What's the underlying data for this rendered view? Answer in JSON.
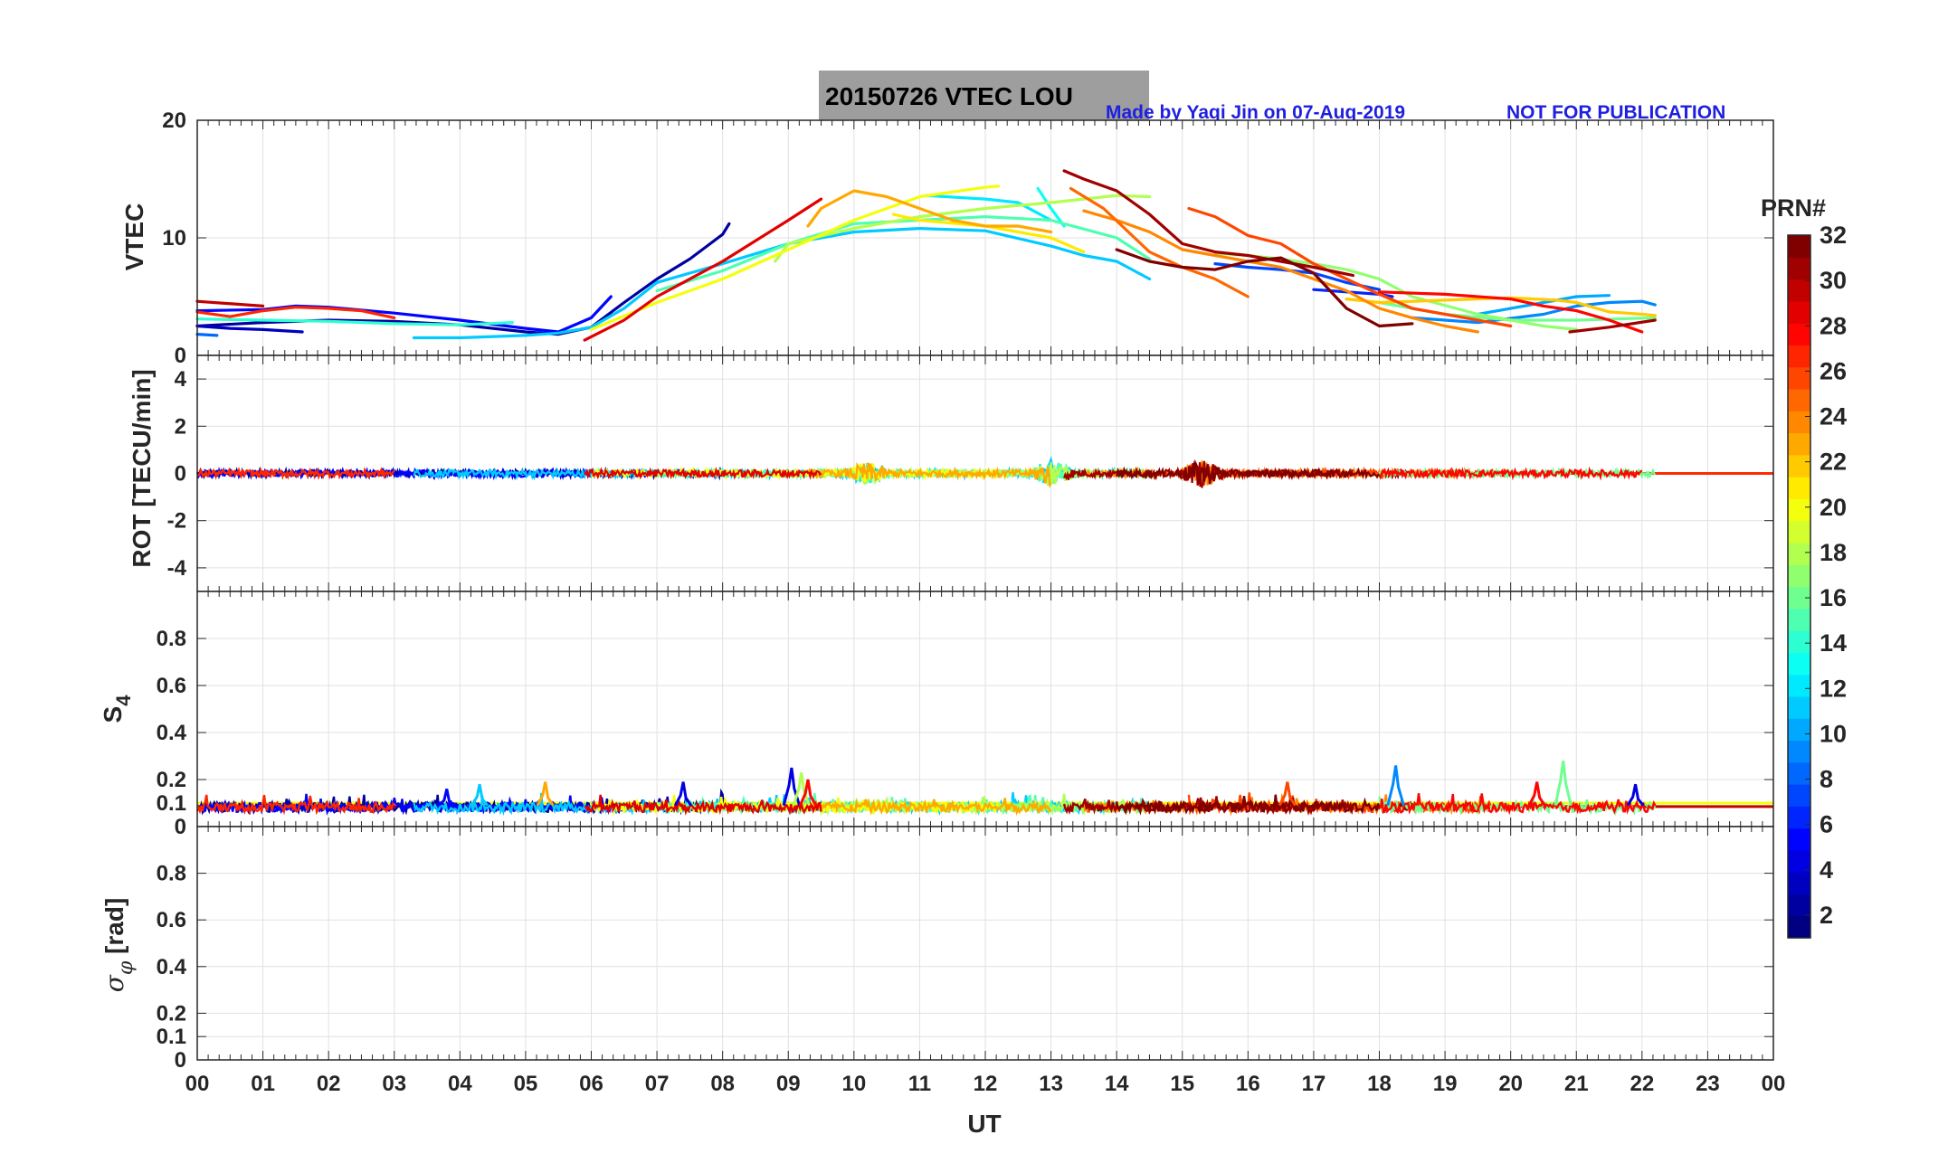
{
  "figure": {
    "title": "20150726    VTEC  LOU",
    "credit": "Made by Yaqi Jin on 07-Aug-2019",
    "notice": "NOT FOR PUBLICATION",
    "title_box_color": "#9e9e9e",
    "credit_color": "#1f1fe0"
  },
  "chart_data": [
    {
      "type": "line",
      "panel": "vtec",
      "ylabel": "VTEC",
      "ylim": [
        0,
        20
      ],
      "yticks": [
        0,
        10,
        20
      ],
      "xlim": [
        0,
        24
      ],
      "grid": true,
      "series": [
        {
          "prn": 2,
          "x": [
            0.0,
            1.0,
            2.0,
            3.0,
            4.0,
            5.0,
            5.5,
            6.0,
            6.5,
            7.0,
            7.5,
            8.0,
            8.1
          ],
          "y": [
            2.5,
            2.8,
            3.0,
            2.9,
            2.6,
            2.0,
            1.8,
            2.4,
            4.5,
            6.5,
            8.2,
            10.3,
            11.2
          ]
        },
        {
          "prn": 3,
          "x": [
            0.0,
            0.5,
            1.0,
            1.6
          ],
          "y": [
            2.5,
            2.3,
            2.2,
            2.0
          ]
        },
        {
          "prn": 5,
          "x": [
            0.0,
            1.0,
            1.5,
            2.0,
            3.0,
            4.0,
            5.0,
            5.5,
            6.0,
            6.3
          ],
          "y": [
            3.8,
            3.9,
            4.2,
            4.1,
            3.6,
            3.0,
            2.3,
            2.0,
            3.2,
            5.0
          ]
        },
        {
          "prn": 6,
          "x": [
            17.0,
            17.5,
            18.0,
            18.2
          ],
          "y": [
            5.6,
            5.4,
            5.2,
            5.0
          ]
        },
        {
          "prn": 7,
          "x": [
            15.5,
            16.0,
            16.5,
            17.0,
            17.5,
            18.0
          ],
          "y": [
            7.8,
            7.5,
            7.3,
            7.0,
            6.2,
            5.6
          ]
        },
        {
          "prn": 8,
          "x": [
            0.0,
            0.3
          ],
          "y": [
            1.8,
            1.7
          ]
        },
        {
          "prn": 9,
          "x": [
            18.5,
            19.5,
            20.5,
            21.0,
            21.5,
            22.0,
            22.2
          ],
          "y": [
            3.2,
            2.8,
            3.5,
            4.2,
            4.5,
            4.6,
            4.3
          ]
        },
        {
          "prn": 10,
          "x": [
            19.5,
            20.5,
            21.0,
            21.5
          ],
          "y": [
            3.5,
            4.5,
            5.0,
            5.1
          ]
        },
        {
          "prn": 11,
          "x": [
            3.3,
            4.0,
            5.0,
            5.5,
            6.0,
            6.5,
            7.0,
            8.0,
            9.0,
            10.0,
            11.0,
            12.0,
            13.0,
            13.5,
            14.0,
            14.5
          ],
          "y": [
            1.5,
            1.5,
            1.7,
            1.9,
            2.4,
            4.0,
            6.2,
            7.8,
            9.5,
            10.5,
            10.8,
            10.6,
            9.3,
            8.5,
            8.0,
            6.5
          ]
        },
        {
          "prn": 12,
          "x": [
            11.1,
            12.0,
            12.5,
            13.0
          ],
          "y": [
            13.6,
            13.3,
            13.0,
            11.5
          ]
        },
        {
          "prn": 13,
          "x": [
            12.8,
            13.0,
            13.2
          ],
          "y": [
            14.2,
            12.5,
            11.0
          ]
        },
        {
          "prn": 14,
          "x": [
            0.0,
            1.0,
            2.0,
            3.0,
            4.0,
            4.8
          ],
          "y": [
            3.1,
            3.0,
            2.9,
            2.7,
            2.6,
            2.8
          ]
        },
        {
          "prn": 15,
          "x": [
            7.0,
            8.0,
            9.0,
            10.0,
            11.0,
            12.0,
            13.0,
            14.0,
            14.5
          ],
          "y": [
            5.5,
            7.2,
            9.5,
            11.2,
            11.5,
            11.8,
            11.5,
            10.0,
            8.2
          ]
        },
        {
          "prn": 16,
          "x": [
            18.0,
            19.0,
            20.0,
            21.0,
            22.2
          ],
          "y": [
            4.5,
            3.5,
            3.0,
            3.0,
            3.2
          ]
        },
        {
          "prn": 17,
          "x": [
            15.5,
            16.0,
            16.5,
            17.0,
            17.5,
            18.0,
            18.5,
            19.5,
            20.0,
            20.5,
            21.0
          ],
          "y": [
            8.7,
            8.5,
            8.2,
            7.8,
            7.3,
            6.5,
            5.0,
            3.5,
            3.0,
            2.5,
            2.2
          ]
        },
        {
          "prn": 18,
          "x": [
            8.8,
            9.0,
            10.0,
            11.0,
            12.0,
            13.0,
            14.0,
            14.5
          ],
          "y": [
            8.0,
            9.5,
            10.8,
            11.8,
            12.5,
            13.0,
            13.6,
            13.5
          ]
        },
        {
          "prn": 20,
          "x": [
            6.0,
            7.0,
            8.0,
            9.0,
            10.0,
            11.0,
            12.0,
            12.2
          ],
          "y": [
            2.2,
            4.5,
            6.5,
            9.0,
            11.5,
            13.5,
            14.3,
            14.4
          ]
        },
        {
          "prn": 21,
          "x": [
            10.6,
            11.0,
            12.0,
            13.0,
            13.5
          ],
          "y": [
            12.0,
            11.5,
            11.0,
            10.0,
            8.8
          ]
        },
        {
          "prn": 22,
          "x": [
            17.5,
            18.0,
            19.0,
            20.0,
            20.7,
            21.0,
            21.5,
            22.0,
            22.2
          ],
          "y": [
            4.8,
            4.5,
            4.7,
            4.9,
            4.7,
            4.5,
            3.7,
            3.5,
            3.4
          ]
        },
        {
          "prn": 23,
          "x": [
            9.3,
            9.5,
            10.0,
            10.5,
            11.0,
            11.5,
            12.0,
            12.5,
            13.0
          ],
          "y": [
            11.0,
            12.5,
            14.0,
            13.5,
            12.5,
            11.5,
            11.0,
            11.0,
            10.5
          ]
        },
        {
          "prn": 24,
          "x": [
            13.5,
            14.0,
            14.5,
            15.0,
            15.5,
            16.0,
            16.5,
            17.0,
            17.5,
            18.0,
            18.5,
            19.0,
            19.5
          ],
          "y": [
            12.3,
            11.5,
            10.5,
            9.0,
            8.5,
            8.0,
            7.5,
            6.5,
            5.5,
            4.0,
            3.2,
            2.5,
            2.0
          ]
        },
        {
          "prn": 25,
          "x": [
            13.3,
            13.8,
            14.5,
            15.0,
            15.5,
            16.0
          ],
          "y": [
            14.2,
            12.5,
            8.8,
            7.5,
            6.5,
            5.0
          ]
        },
        {
          "prn": 26,
          "x": [
            15.1,
            15.5,
            16.0,
            16.5,
            17.0,
            17.5,
            18.0,
            18.5,
            19.0,
            19.5,
            20.0
          ],
          "y": [
            12.5,
            11.8,
            10.2,
            9.5,
            7.8,
            6.5,
            5.2,
            4.0,
            3.5,
            3.0,
            2.5
          ]
        },
        {
          "prn": 27,
          "x": [
            0.0,
            0.5,
            1.0,
            1.5,
            2.0,
            2.5,
            3.0
          ],
          "y": [
            3.7,
            3.3,
            3.8,
            4.1,
            4.0,
            3.8,
            3.2
          ]
        },
        {
          "prn": 28,
          "x": [
            18.0,
            19.0,
            20.0,
            20.5,
            21.0,
            21.5,
            22.0
          ],
          "y": [
            5.4,
            5.2,
            4.8,
            4.2,
            3.8,
            3.0,
            2.0
          ]
        },
        {
          "prn": 29,
          "x": [
            5.9,
            6.5,
            7.0,
            8.0,
            9.0,
            9.5
          ],
          "y": [
            1.3,
            3.0,
            5.0,
            8.0,
            11.5,
            13.3
          ]
        },
        {
          "prn": 30,
          "x": [
            0.0,
            1.0
          ],
          "y": [
            4.6,
            4.2
          ]
        },
        {
          "prn": 31,
          "x": [
            13.2,
            13.5,
            14.0,
            14.5,
            15.0,
            15.5,
            16.0,
            16.5,
            17.0,
            17.6
          ],
          "y": [
            15.7,
            15.0,
            14.0,
            12.0,
            9.5,
            8.8,
            8.5,
            8.0,
            7.5,
            6.8
          ]
        },
        {
          "prn": 32,
          "x": [
            14.0,
            14.5,
            15.0,
            15.5,
            16.0,
            16.5,
            17.0,
            17.5,
            18.0,
            18.5
          ],
          "y": [
            9.0,
            8.0,
            7.5,
            7.3,
            8.0,
            8.3,
            7.0,
            4.0,
            2.5,
            2.7
          ]
        },
        {
          "prn": 31,
          "x": [
            20.9,
            21.5,
            22.2
          ],
          "y": [
            2.0,
            2.4,
            3.0
          ]
        }
      ]
    },
    {
      "type": "line",
      "panel": "rot",
      "ylabel": "ROT [TECU/min]",
      "ylim": [
        -5,
        5
      ],
      "yticks": [
        -4,
        -2,
        0,
        2,
        4
      ],
      "xlim": [
        0,
        24
      ],
      "grid": true,
      "baseline": 0,
      "noise": {
        "base_amplitude": 0.15,
        "bursts": [
          {
            "x": 13.0,
            "amp": 0.6
          },
          {
            "x": 15.3,
            "amp": 0.6
          },
          {
            "x": 10.2,
            "amp": 0.5
          }
        ]
      },
      "series_ranges": [
        {
          "prn": 2,
          "x0": 0.0,
          "x1": 8.1
        },
        {
          "prn": 5,
          "x0": 0.0,
          "x1": 6.3
        },
        {
          "prn": 11,
          "x0": 3.3,
          "x1": 14.5
        },
        {
          "prn": 15,
          "x0": 7.0,
          "x1": 14.5
        },
        {
          "prn": 18,
          "x0": 8.8,
          "x1": 14.5
        },
        {
          "prn": 20,
          "x0": 6.0,
          "x1": 12.2
        },
        {
          "prn": 23,
          "x0": 9.3,
          "x1": 13.0
        },
        {
          "prn": 24,
          "x0": 13.5,
          "x1": 19.5
        },
        {
          "prn": 26,
          "x0": 15.1,
          "x1": 20.0
        },
        {
          "prn": 29,
          "x0": 5.9,
          "x1": 9.5
        },
        {
          "prn": 31,
          "x0": 13.2,
          "x1": 17.6
        },
        {
          "prn": 32,
          "x0": 14.0,
          "x1": 18.5
        },
        {
          "prn": 16,
          "x0": 18.0,
          "x1": 22.2
        },
        {
          "prn": 28,
          "x0": 18.0,
          "x1": 22.0
        },
        {
          "prn": 27,
          "x0": 0.0,
          "x1": 3.0
        }
      ],
      "flat_x1": 24.0
    },
    {
      "type": "line",
      "panel": "s4",
      "ylabel": "S4",
      "ylim": [
        0,
        1
      ],
      "yticks": [
        0,
        0.1,
        0.2,
        0.4,
        0.6,
        0.8
      ],
      "xlim": [
        0,
        24
      ],
      "grid": true,
      "baseline": 0.08,
      "series_ranges": [
        {
          "prn": 2,
          "x0": 0.0,
          "x1": 8.1
        },
        {
          "prn": 5,
          "x0": 0.0,
          "x1": 6.3
        },
        {
          "prn": 11,
          "x0": 3.3,
          "x1": 14.5
        },
        {
          "prn": 15,
          "x0": 7.0,
          "x1": 14.5
        },
        {
          "prn": 18,
          "x0": 8.8,
          "x1": 14.5
        },
        {
          "prn": 20,
          "x0": 6.0,
          "x1": 12.2
        },
        {
          "prn": 23,
          "x0": 9.3,
          "x1": 13.0
        },
        {
          "prn": 24,
          "x0": 13.5,
          "x1": 19.5
        },
        {
          "prn": 26,
          "x0": 15.1,
          "x1": 20.0
        },
        {
          "prn": 29,
          "x0": 5.9,
          "x1": 9.5
        },
        {
          "prn": 31,
          "x0": 13.2,
          "x1": 17.6
        },
        {
          "prn": 32,
          "x0": 14.0,
          "x1": 18.5
        },
        {
          "prn": 16,
          "x0": 18.0,
          "x1": 22.2
        },
        {
          "prn": 28,
          "x0": 18.0,
          "x1": 22.2
        },
        {
          "prn": 27,
          "x0": 0.0,
          "x1": 3.0
        }
      ],
      "spikes": [
        {
          "prn": 5,
          "x": 3.8,
          "y": 0.16
        },
        {
          "prn": 11,
          "x": 4.3,
          "y": 0.18
        },
        {
          "prn": 23,
          "x": 5.3,
          "y": 0.19
        },
        {
          "prn": 4,
          "x": 7.4,
          "y": 0.19
        },
        {
          "prn": 4,
          "x": 9.05,
          "y": 0.25
        },
        {
          "prn": 18,
          "x": 9.2,
          "y": 0.23
        },
        {
          "prn": 28,
          "x": 9.3,
          "y": 0.2
        },
        {
          "prn": 26,
          "x": 16.6,
          "y": 0.19
        },
        {
          "prn": 9,
          "x": 18.25,
          "y": 0.26
        },
        {
          "prn": 16,
          "x": 20.8,
          "y": 0.28
        },
        {
          "prn": 28,
          "x": 20.4,
          "y": 0.19
        },
        {
          "prn": 4,
          "x": 21.9,
          "y": 0.18
        }
      ],
      "flat_lines": [
        {
          "prn": 20,
          "y": 0.1
        },
        {
          "prn": 30,
          "y": 0.085
        }
      ],
      "flat_x1": 24.0
    },
    {
      "type": "line",
      "panel": "sigma_phi",
      "ylabel": "σ_φ [rad]",
      "ylim": [
        0,
        1
      ],
      "yticks": [
        0,
        0.1,
        0.2,
        0.4,
        0.6,
        0.8
      ],
      "xlim": [
        0,
        24
      ],
      "grid": true,
      "series": []
    }
  ],
  "x_axis": {
    "label": "UT",
    "tick_labels": [
      "00",
      "01",
      "02",
      "03",
      "04",
      "05",
      "06",
      "07",
      "08",
      "09",
      "10",
      "11",
      "12",
      "13",
      "14",
      "15",
      "16",
      "17",
      "18",
      "19",
      "20",
      "21",
      "22",
      "23",
      "00"
    ]
  },
  "colorbar": {
    "title": "PRN#",
    "range": [
      1,
      32
    ],
    "tick_labels": [
      "2",
      "4",
      "6",
      "8",
      "10",
      "12",
      "14",
      "16",
      "18",
      "20",
      "22",
      "24",
      "26",
      "28",
      "30",
      "32"
    ],
    "colormap": "jet"
  }
}
